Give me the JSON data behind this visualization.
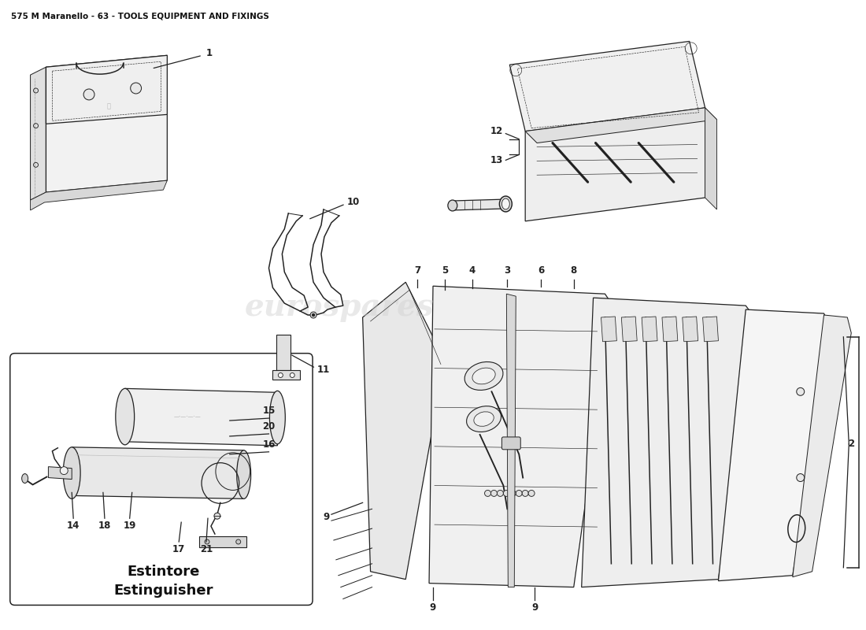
{
  "title": "575 M Maranello - 63 - TOOLS EQUIPMENT AND FIXINGS",
  "title_fontsize": 7.5,
  "title_color": "#111111",
  "background_color": "#ffffff",
  "line_color": "#222222",
  "label_fontsize": 8.5,
  "ext_label_fontsize": 13,
  "watermark_text": "eurospares",
  "watermark_color": "#d0d0d0",
  "watermark_alpha": 0.45,
  "watermark_fontsize": 28
}
